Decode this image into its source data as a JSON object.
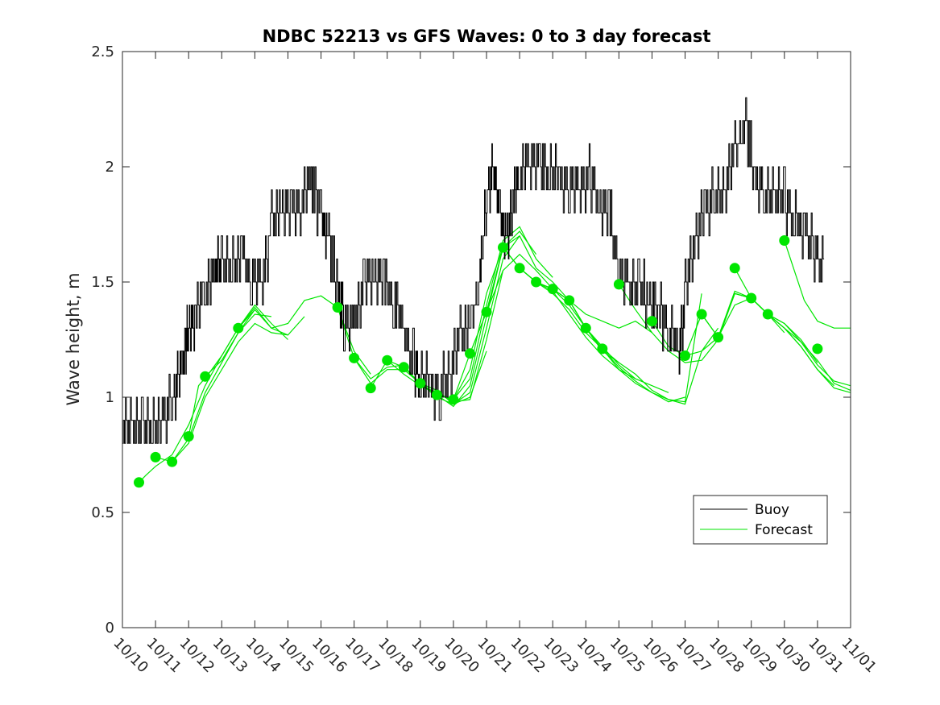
{
  "chart_data": {
    "type": "line",
    "title": "NDBC 52213 vs GFS Waves: 0 to 3 day forecast",
    "xlabel": "",
    "ylabel": "Wave height, m",
    "xlim": [
      0,
      22
    ],
    "ylim": [
      0,
      2.5
    ],
    "yticks": [
      0,
      0.5,
      1,
      1.5,
      2,
      2.5
    ],
    "ytick_labels": [
      "0",
      "0.5",
      "1",
      "1.5",
      "2",
      "2.5"
    ],
    "xtick_labels": [
      "10/10",
      "10/11",
      "10/12",
      "10/13",
      "10/14",
      "10/15",
      "10/16",
      "10/17",
      "10/18",
      "10/19",
      "10/20",
      "10/21",
      "10/22",
      "10/23",
      "10/24",
      "10/25",
      "10/26",
      "10/27",
      "10/28",
      "10/29",
      "10/30",
      "10/31",
      "11/01"
    ],
    "legend": {
      "position": "bottom-right",
      "entries": [
        "Buoy",
        "Forecast"
      ]
    },
    "colors": {
      "buoy": "#000000",
      "forecast": "#00e600",
      "axes": "#262626"
    },
    "buoy": {
      "name": "Buoy",
      "x": [
        0,
        0.3,
        0.6,
        0.9,
        1.2,
        1.5,
        1.7,
        1.9,
        2.0,
        2.2,
        2.5,
        2.8,
        3.0,
        3.3,
        3.6,
        3.9,
        4.2,
        4.5,
        4.8,
        5.1,
        5.4,
        5.7,
        6.0,
        6.2,
        6.5,
        6.7,
        7.0,
        7.3,
        7.6,
        7.9,
        8.2,
        8.5,
        8.8,
        9.0,
        9.3,
        9.6,
        9.9,
        10.2,
        10.5,
        10.8,
        11.0,
        11.2,
        11.4,
        11.6,
        11.8,
        12.0,
        12.3,
        12.6,
        12.9,
        13.2,
        13.5,
        13.8,
        14.1,
        14.4,
        14.7,
        15.0,
        15.3,
        15.6,
        15.9,
        16.2,
        16.5,
        16.8,
        17.0,
        17.3,
        17.6,
        17.9,
        18.2,
        18.5,
        18.8,
        19.1,
        19.4,
        19.7,
        20.0,
        20.3,
        20.6,
        20.9,
        21.2
      ],
      "y": [
        0.85,
        0.88,
        0.87,
        0.85,
        0.9,
        0.98,
        1.08,
        1.22,
        1.3,
        1.36,
        1.48,
        1.55,
        1.58,
        1.55,
        1.62,
        1.5,
        1.5,
        1.75,
        1.82,
        1.8,
        1.85,
        1.95,
        1.78,
        1.7,
        1.48,
        1.32,
        1.35,
        1.5,
        1.52,
        1.5,
        1.42,
        1.28,
        1.15,
        1.08,
        1.05,
        1.03,
        1.12,
        1.25,
        1.32,
        1.5,
        1.88,
        1.98,
        1.78,
        1.7,
        1.82,
        1.98,
        2.02,
        2.03,
        1.95,
        1.95,
        1.93,
        1.9,
        1.95,
        1.85,
        1.82,
        1.55,
        1.5,
        1.48,
        1.42,
        1.38,
        1.3,
        1.2,
        1.45,
        1.7,
        1.82,
        1.88,
        1.9,
        2.05,
        2.2,
        1.95,
        1.88,
        1.9,
        1.85,
        1.78,
        1.72,
        1.65,
        1.55
      ]
    },
    "forecasts": [
      {
        "x": [
          0.5,
          0.7,
          1.0,
          1.5,
          2.0,
          2.5,
          3.0,
          3.5,
          4.0
        ],
        "y": [
          0.63,
          0.66,
          0.7,
          0.75,
          0.88,
          1.05,
          1.18,
          1.3,
          1.38
        ]
      },
      {
        "x": [
          1.0,
          1.5,
          2.0,
          2.5,
          3.0,
          3.5,
          4.0,
          4.5
        ],
        "y": [
          0.74,
          0.72,
          0.82,
          1.02,
          1.15,
          1.28,
          1.36,
          1.35
        ]
      },
      {
        "x": [
          1.5,
          2.0,
          2.5,
          3.0,
          3.5,
          4.0,
          4.5,
          5.0
        ],
        "y": [
          0.72,
          0.8,
          1.0,
          1.12,
          1.24,
          1.32,
          1.28,
          1.27
        ]
      },
      {
        "x": [
          2.0,
          2.3,
          2.6,
          3.0,
          3.5,
          4.0,
          4.5,
          5.0
        ],
        "y": [
          0.83,
          1.05,
          1.1,
          1.18,
          1.3,
          1.4,
          1.32,
          1.25
        ]
      },
      {
        "x": [
          2.5,
          3.0,
          3.5,
          4.0,
          4.5,
          5.0,
          5.5
        ],
        "y": [
          1.09,
          1.16,
          1.28,
          1.38,
          1.3,
          1.27,
          1.35
        ]
      },
      {
        "x": [
          3.5,
          4.0,
          4.5,
          5.0,
          5.5,
          6.0,
          6.5,
          7.0,
          7.5
        ],
        "y": [
          1.3,
          1.39,
          1.3,
          1.32,
          1.42,
          1.44,
          1.39,
          1.2,
          1.1
        ]
      },
      {
        "x": [
          6.5,
          7.0,
          7.5,
          8.0,
          8.5,
          9.0,
          9.5,
          10.0
        ],
        "y": [
          1.39,
          1.17,
          1.08,
          1.13,
          1.14,
          1.05,
          1.02,
          0.98
        ]
      },
      {
        "x": [
          7.0,
          7.5,
          8.0,
          8.5,
          9.0,
          9.5,
          10.0,
          10.5,
          11.0
        ],
        "y": [
          1.17,
          1.06,
          1.12,
          1.12,
          1.06,
          1.03,
          0.97,
          1.0,
          1.2
        ]
      },
      {
        "x": [
          7.5,
          8.0,
          8.5,
          9.0,
          9.5,
          10.0,
          10.5,
          11.0,
          11.5
        ],
        "y": [
          1.04,
          1.16,
          1.1,
          1.05,
          1.02,
          0.98,
          0.99,
          1.25,
          1.55
        ]
      },
      {
        "x": [
          8.0,
          8.5,
          9.0,
          9.5,
          10.0,
          10.5,
          11.0,
          11.5,
          12.0
        ],
        "y": [
          1.16,
          1.13,
          1.06,
          1.0,
          0.97,
          1.02,
          1.3,
          1.6,
          1.7
        ]
      },
      {
        "x": [
          8.5,
          9.0,
          9.5,
          10.0,
          10.5,
          11.0,
          11.5,
          12.0,
          12.5
        ],
        "y": [
          1.13,
          1.06,
          1.01,
          0.96,
          1.05,
          1.35,
          1.65,
          1.72,
          1.62
        ]
      },
      {
        "x": [
          9.0,
          9.5,
          10.0,
          10.5,
          11.0,
          11.5,
          12.0,
          12.5,
          13.0
        ],
        "y": [
          1.06,
          1.01,
          0.99,
          1.08,
          1.4,
          1.68,
          1.74,
          1.6,
          1.52
        ]
      },
      {
        "x": [
          9.5,
          10.0,
          10.5,
          11.0,
          11.5,
          12.0,
          12.5,
          13.0,
          13.5
        ],
        "y": [
          1.01,
          0.99,
          1.12,
          1.45,
          1.65,
          1.7,
          1.56,
          1.5,
          1.42
        ]
      },
      {
        "x": [
          10.0,
          10.5,
          11.0,
          11.5,
          12.0,
          12.5,
          13.0,
          13.5,
          14.0
        ],
        "y": [
          0.99,
          1.19,
          1.37,
          1.55,
          1.62,
          1.55,
          1.47,
          1.4,
          1.3
        ]
      },
      {
        "x": [
          10.5,
          11.0,
          11.5,
          12.0,
          12.5,
          13.0,
          13.5,
          14.0,
          14.5
        ],
        "y": [
          1.19,
          1.37,
          1.65,
          1.56,
          1.5,
          1.45,
          1.38,
          1.28,
          1.21
        ]
      },
      {
        "x": [
          11.0,
          11.5,
          12.0,
          12.5,
          13.0,
          13.5,
          14.0,
          14.5,
          15.0
        ],
        "y": [
          1.37,
          1.65,
          1.56,
          1.5,
          1.47,
          1.42,
          1.3,
          1.2,
          1.15
        ]
      },
      {
        "x": [
          11.5,
          12.0,
          12.5,
          13.0,
          13.5,
          14.0,
          14.5,
          15.0,
          15.5
        ],
        "y": [
          1.65,
          1.56,
          1.5,
          1.46,
          1.36,
          1.26,
          1.18,
          1.12,
          1.08
        ]
      },
      {
        "x": [
          12.0,
          12.5,
          13.0,
          13.5,
          14.0,
          14.5,
          15.0,
          15.5,
          16.0
        ],
        "y": [
          1.56,
          1.5,
          1.47,
          1.42,
          1.36,
          1.33,
          1.3,
          1.33,
          1.28
        ]
      },
      {
        "x": [
          12.5,
          13.0,
          13.5,
          14.0,
          14.5,
          15.0,
          15.5,
          16.0,
          16.5
        ],
        "y": [
          1.5,
          1.47,
          1.42,
          1.3,
          1.22,
          1.14,
          1.08,
          1.05,
          1.02
        ]
      },
      {
        "x": [
          13.0,
          13.5,
          14.0,
          14.5,
          15.0,
          15.5,
          16.0,
          16.5,
          17.0
        ],
        "y": [
          1.47,
          1.42,
          1.3,
          1.21,
          1.13,
          1.07,
          1.02,
          0.98,
          1.0
        ]
      },
      {
        "x": [
          13.5,
          14.0,
          14.5,
          15.0,
          15.5,
          16.0,
          16.5,
          17.0,
          17.5
        ],
        "y": [
          1.42,
          1.3,
          1.21,
          1.12,
          1.06,
          1.02,
          0.99,
          0.98,
          1.45
        ]
      },
      {
        "x": [
          14.0,
          14.5,
          15.0,
          15.5,
          16.0,
          16.5,
          17.0,
          17.5,
          18.0
        ],
        "y": [
          1.3,
          1.21,
          1.15,
          1.1,
          1.03,
          0.99,
          0.97,
          1.2,
          1.3
        ]
      },
      {
        "x": [
          15.0,
          15.5,
          16.0,
          16.5,
          17.0,
          17.5,
          18.0,
          18.5,
          19.0
        ],
        "y": [
          1.49,
          1.38,
          1.28,
          1.2,
          1.15,
          1.16,
          1.25,
          1.45,
          1.43
        ]
      },
      {
        "x": [
          16.0,
          16.5,
          17.0,
          17.5,
          18.0,
          18.5,
          19.0,
          19.5,
          20.0
        ],
        "y": [
          1.33,
          1.22,
          1.18,
          1.2,
          1.26,
          1.4,
          1.43,
          1.36,
          1.28
        ]
      },
      {
        "x": [
          17.0,
          17.5,
          18.0,
          18.5,
          19.0,
          19.5,
          20.0,
          20.5,
          21.0
        ],
        "y": [
          1.18,
          1.36,
          1.26,
          1.45,
          1.43,
          1.36,
          1.32,
          1.25,
          1.15
        ]
      },
      {
        "x": [
          17.5,
          18.0,
          18.5,
          19.0,
          19.5,
          20.0,
          20.5,
          21.0,
          21.5
        ],
        "y": [
          1.36,
          1.26,
          1.46,
          1.43,
          1.36,
          1.3,
          1.22,
          1.12,
          1.05
        ]
      },
      {
        "x": [
          18.0,
          18.5,
          19.0,
          19.5,
          20.0,
          20.5,
          21.0,
          21.5,
          22.0
        ],
        "y": [
          1.26,
          1.45,
          1.43,
          1.36,
          1.32,
          1.24,
          1.14,
          1.07,
          1.05
        ]
      },
      {
        "x": [
          18.5,
          19.0,
          19.5,
          20.0,
          20.5,
          21.0,
          21.5,
          22.0
        ],
        "y": [
          1.56,
          1.43,
          1.36,
          1.3,
          1.22,
          1.12,
          1.04,
          1.02
        ]
      },
      {
        "x": [
          19.0,
          19.5,
          20.0,
          20.5,
          21.0,
          21.5,
          22.0
        ],
        "y": [
          1.43,
          1.36,
          1.3,
          1.24,
          1.16,
          1.06,
          1.03
        ]
      },
      {
        "x": [
          20.0,
          20.3,
          20.6,
          21.0,
          21.5,
          22.0
        ],
        "y": [
          1.68,
          1.55,
          1.42,
          1.33,
          1.3,
          1.3
        ]
      }
    ],
    "forecast_points": {
      "x": [
        0.5,
        1.0,
        1.5,
        2.0,
        2.5,
        3.5,
        6.5,
        7.0,
        7.5,
        8.0,
        8.5,
        9.0,
        9.5,
        10.0,
        10.5,
        11.0,
        11.5,
        12.0,
        12.5,
        13.0,
        13.5,
        14.0,
        14.5,
        15.0,
        16.0,
        17.0,
        17.5,
        18.0,
        18.5,
        19.0,
        19.5,
        20.0,
        21.0
      ],
      "y": [
        0.63,
        0.74,
        0.72,
        0.83,
        1.09,
        1.3,
        1.39,
        1.17,
        1.04,
        1.16,
        1.13,
        1.06,
        1.01,
        0.99,
        1.19,
        1.37,
        1.65,
        1.56,
        1.5,
        1.47,
        1.42,
        1.3,
        1.21,
        1.49,
        1.33,
        1.18,
        1.36,
        1.26,
        1.56,
        1.43,
        1.36,
        1.68,
        1.21
      ]
    }
  }
}
